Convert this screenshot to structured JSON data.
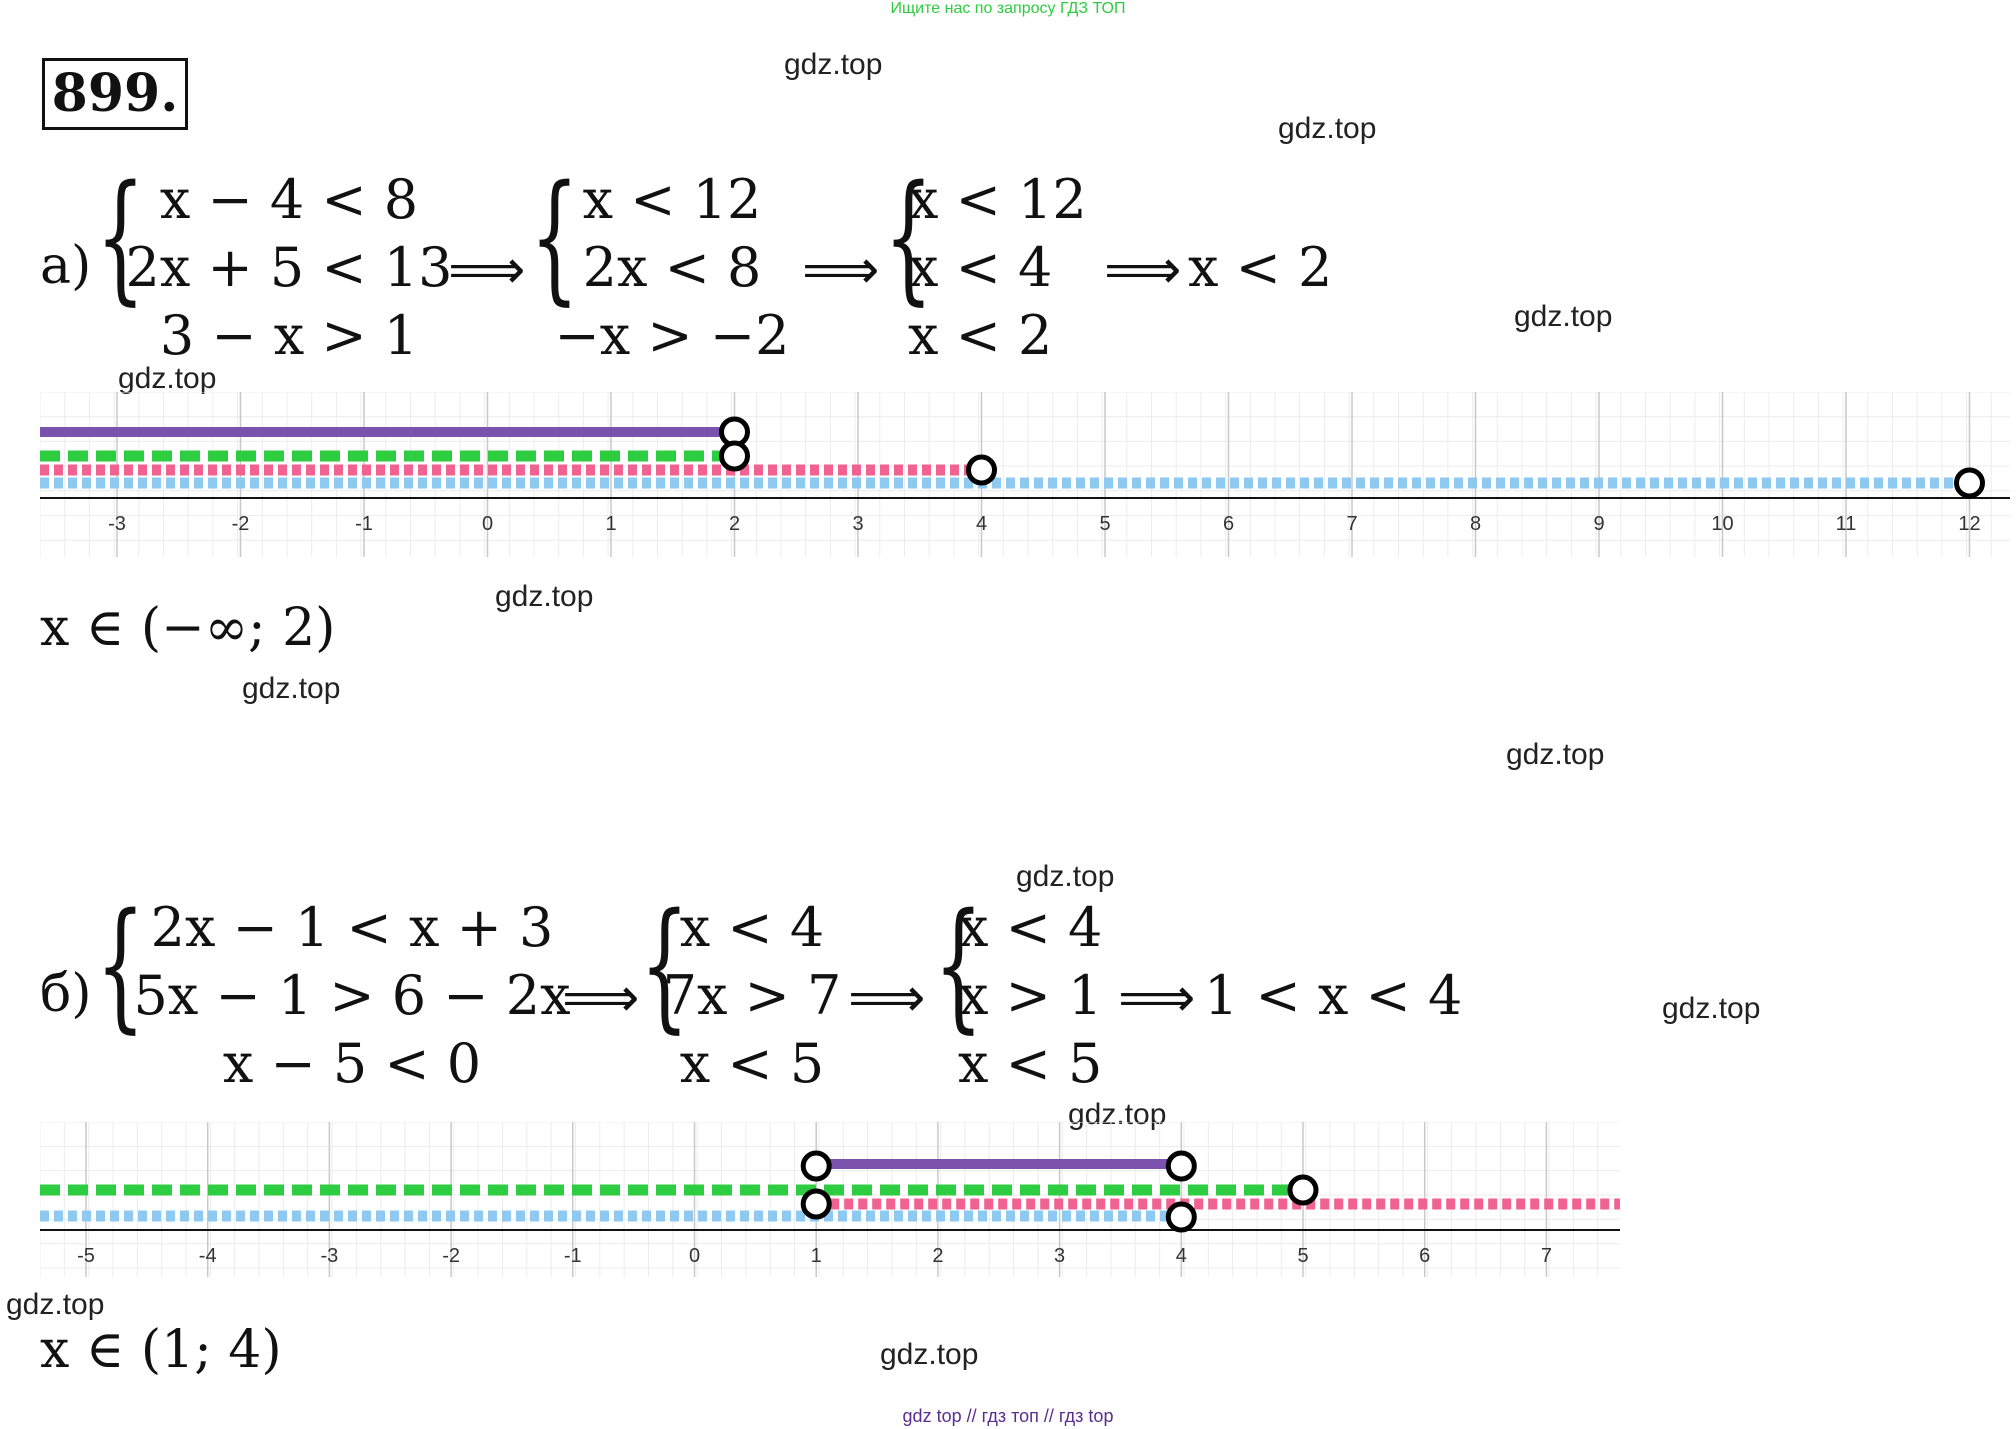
{
  "banner": "Ищите нас по запросу ГДЗ ТОП",
  "problem_number": "899.",
  "watermark": "gdz.top",
  "part_a": {
    "label": "а)",
    "system1": [
      "x − 4 < 8",
      "2x + 5 < 13",
      "3 − x > 1"
    ],
    "system2": [
      "x < 12",
      "2x < 8",
      "−x > −2"
    ],
    "system3": [
      "x < 12",
      "x < 4",
      "x < 2"
    ],
    "result": "x < 2",
    "arrow": "⟹",
    "answer": "x ∈ (−∞; 2)",
    "axis_ticks": [
      "-3",
      "-2",
      "-1",
      "0",
      "1",
      "2",
      "3",
      "4",
      "5",
      "6",
      "7",
      "8",
      "9",
      "10",
      "11",
      "12"
    ],
    "rays": [
      {
        "name": "solution",
        "color": "#7b52ab",
        "style": "solid",
        "from": "-inf",
        "to": 2
      },
      {
        "name": "x<2",
        "color": "#2ecc40",
        "style": "dashed",
        "from": "-inf",
        "to": 2
      },
      {
        "name": "x<4",
        "color": "#f06292",
        "style": "dotted",
        "from": "-inf",
        "to": 4
      },
      {
        "name": "x<12",
        "color": "#8ec9ef",
        "style": "dotted",
        "from": "-inf",
        "to": 12
      }
    ],
    "open_points": [
      2,
      4,
      12
    ]
  },
  "part_b": {
    "label": "б)",
    "system1": [
      "2x − 1 < x + 3",
      "5x − 1 > 6 − 2x",
      "x − 5 < 0"
    ],
    "system2": [
      "x < 4",
      "7x > 7",
      "x < 5"
    ],
    "system3": [
      "x < 4",
      "x > 1",
      "x < 5"
    ],
    "result": "1 < x < 4",
    "arrow": "⟹",
    "answer": "x ∈ (1; 4)",
    "axis_ticks": [
      "-5",
      "-4",
      "-3",
      "-2",
      "-1",
      "0",
      "1",
      "2",
      "3",
      "4",
      "5",
      "6",
      "7"
    ],
    "rays": [
      {
        "name": "solution",
        "color": "#7b52ab",
        "style": "solid",
        "from": 1,
        "to": 4
      },
      {
        "name": "x<5",
        "color": "#2ecc40",
        "style": "dashed",
        "from": "-inf",
        "to": 5
      },
      {
        "name": "x>1",
        "color": "#f06292",
        "style": "dotted",
        "from": 1,
        "to": "+inf"
      },
      {
        "name": "x<4",
        "color": "#8ec9ef",
        "style": "dotted",
        "from": "-inf",
        "to": 4
      }
    ],
    "open_points": [
      1,
      4,
      5
    ]
  },
  "footer": "gdz top  //  гдз топ  //  гдз top"
}
